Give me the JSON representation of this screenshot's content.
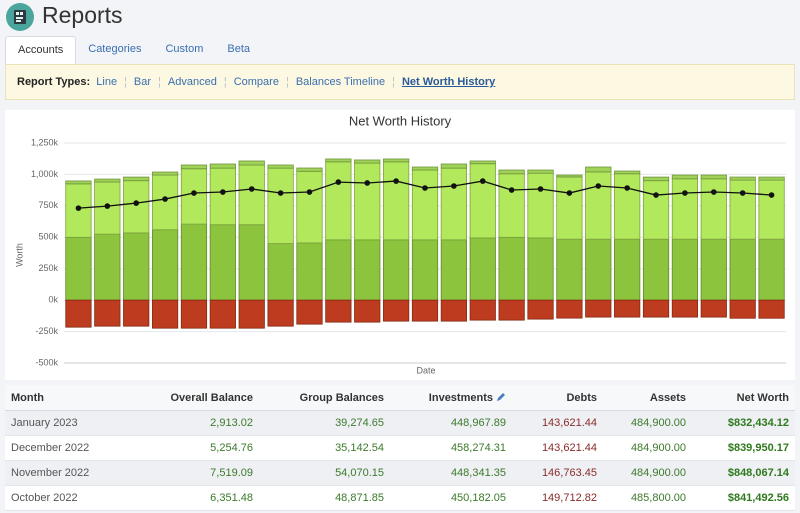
{
  "header": {
    "title": "Reports"
  },
  "tabs": {
    "items": [
      "Accounts",
      "Categories",
      "Custom",
      "Beta"
    ],
    "active": 0
  },
  "report_types": {
    "label": "Report Types:",
    "items": [
      "Line",
      "Bar",
      "Advanced",
      "Compare",
      "Balances Timeline",
      "Net Worth History"
    ],
    "active": 5
  },
  "chart_data": {
    "type": "bar",
    "stacked": true,
    "title": "Net Worth History",
    "x_label": "Date",
    "y_label": "Worth",
    "categories": [
      null,
      null,
      null,
      null,
      null,
      null,
      null,
      null,
      null,
      null,
      null,
      null,
      null,
      null,
      null,
      null,
      null,
      null,
      null,
      null,
      null,
      null,
      null,
      null,
      null
    ],
    "ylim": [
      -500000,
      1250000
    ],
    "yticks": [
      {
        "value": -500000,
        "label": "-500k"
      },
      {
        "value": -250000,
        "label": "-250k"
      },
      {
        "value": 0,
        "label": "0k"
      },
      {
        "value": 250000,
        "label": "250k"
      },
      {
        "value": 500000,
        "label": "500k"
      },
      {
        "value": 750000,
        "label": "750k"
      },
      {
        "value": 1000000,
        "label": "1,000k"
      },
      {
        "value": 1250000,
        "label": "1,250k"
      }
    ],
    "grid": true,
    "series": [
      {
        "color": "#8cc43d",
        "values": [
          500000,
          525000,
          535000,
          560000,
          605000,
          600000,
          600000,
          450000,
          455000,
          480000,
          480000,
          480000,
          480000,
          480000,
          495000,
          500000,
          495000,
          485000,
          485000,
          485000,
          485000,
          485000,
          485000,
          485000,
          485000
        ]
      },
      {
        "color": "#b2e85c",
        "values": [
          425000,
          415000,
          415000,
          435000,
          440000,
          450000,
          475000,
          600000,
          570000,
          620000,
          610000,
          620000,
          555000,
          570000,
          590000,
          505000,
          515000,
          495000,
          535000,
          520000,
          465000,
          480000,
          480000,
          470000,
          470000
        ]
      },
      {
        "color": "#9fd256",
        "values": [
          23000,
          23000,
          29000,
          24000,
          30000,
          33000,
          32000,
          25000,
          26000,
          23000,
          25000,
          23000,
          24000,
          33000,
          22000,
          30000,
          25000,
          15000,
          39000,
          22000,
          29000,
          30000,
          30000,
          24000,
          24000
        ]
      },
      {
        "color": "#bd3b1e",
        "values": [
          -215000,
          -207000,
          -207000,
          -223000,
          -223000,
          -223000,
          -223000,
          -207000,
          -191000,
          -175000,
          -175000,
          -167000,
          -167000,
          -167000,
          -159000,
          -159000,
          -151000,
          -143000,
          -135000,
          -135000,
          -135000,
          -135000,
          -135000,
          -144000,
          -144000
        ]
      },
      {
        "type": "line",
        "color": "#111111",
        "values": [
          732000,
          748000,
          772000,
          804000,
          852000,
          860000,
          884000,
          852000,
          860000,
          939000,
          932000,
          947000,
          892000,
          908000,
          947000,
          876000,
          884000,
          852000,
          908000,
          892000,
          836000,
          852000,
          860000,
          852000,
          836000
        ]
      }
    ]
  },
  "table": {
    "columns": [
      "Month",
      "Overall Balance",
      "Group Balances",
      "Investments",
      "Debts",
      "Assets",
      "Net Worth"
    ],
    "rows": [
      [
        "January 2023",
        "2,913.02",
        "39,274.65",
        "448,967.89",
        "143,621.44",
        "484,900.00",
        "$832,434.12"
      ],
      [
        "December 2022",
        "5,254.76",
        "35,142.54",
        "458,274.31",
        "143,621.44",
        "484,900.00",
        "$839,950.17"
      ],
      [
        "November 2022",
        "7,519.09",
        "54,070.15",
        "448,341.35",
        "146,763.45",
        "484,900.00",
        "$848,067.14"
      ],
      [
        "October 2022",
        "6,351.48",
        "48,871.85",
        "450,182.05",
        "149,712.82",
        "485,800.00",
        "$841,492.56"
      ]
    ]
  }
}
